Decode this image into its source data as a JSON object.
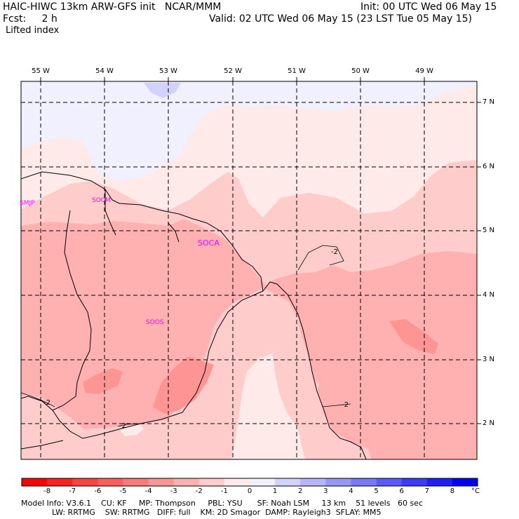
{
  "header": {
    "title": "HAIC-HIWC 13km ARW-GFS init   NCAR/MMM",
    "init": "Init: 00 UTC Wed 06 May 15",
    "fcst": "Fcst:     2 h",
    "valid": "Valid: 02 UTC Wed 06 May 15 (23 LST Tue 05 May 15)",
    "field": "Lifted index"
  },
  "map": {
    "lon_labels": [
      "55 W",
      "54 W",
      "53 W",
      "52 W",
      "51 W",
      "50 W",
      "49 W"
    ],
    "lat_labels": [
      "7 N",
      "6 N",
      "5 N",
      "4 N",
      "3 N",
      "2 N"
    ],
    "stations": [
      "SMJP",
      "SOCM",
      "SOCA",
      "SOOS"
    ],
    "contour_labels": [
      "-2",
      "-2",
      "-2",
      "-2"
    ]
  },
  "colorbar": {
    "ticks": [
      "-8",
      "-7",
      "-6",
      "-5",
      "-4",
      "-3",
      "-2",
      "-1",
      "0",
      "1",
      "2",
      "3",
      "4",
      "5",
      "6",
      "7",
      "8"
    ],
    "unit": "°C",
    "colors": [
      "#ff0000",
      "#ff2020",
      "#ff4040",
      "#ff5c5c",
      "#ff7878",
      "#ff9494",
      "#ffb0b0",
      "#ffcccc",
      "#ffeaea",
      "#f0f0ff",
      "#d2d2ff",
      "#b4b4ff",
      "#9696ff",
      "#7878ff",
      "#5a5aff",
      "#3c3cff",
      "#1e1eff",
      "#0000ff"
    ]
  },
  "footer": {
    "line1": "Model Info: V3.6.1    CU: KF     MP: Thompson     PBL: YSU      SF: Noah LSM     13 km    51 levels   60 sec",
    "line2": "LW: RRTMG    SW: RRTMG   DIFF: full    KM: 2D Smagor  DAMP: Rayleigh3  SFLAY: MM5"
  }
}
